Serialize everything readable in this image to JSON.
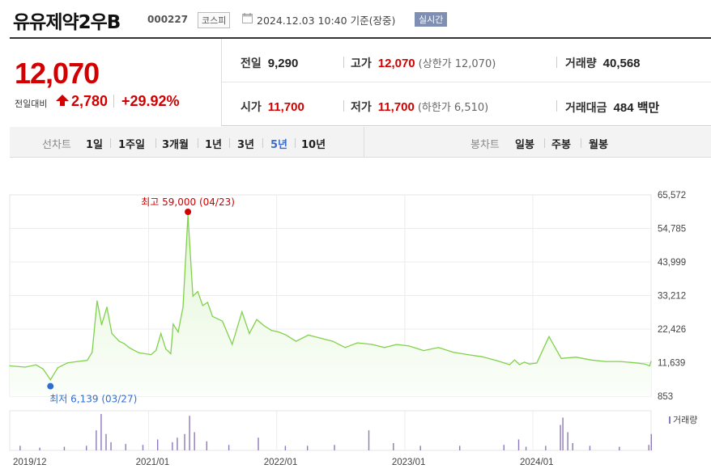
{
  "header": {
    "stock_name": "유유제약2우B",
    "stock_code": "000227",
    "market": "코스피",
    "datetime": "2024.12.03 10:40",
    "basis": "기준(장중)",
    "realtime_badge": "실시간"
  },
  "summary": {
    "price": "12,070",
    "change_label": "전일대비",
    "change": "2,780",
    "change_pct": "+29.92%",
    "prev_close_label": "전일",
    "prev_close": "9,290",
    "high_label": "고가",
    "high": "12,070",
    "high_limit": "(상한가 12,070)",
    "volume_label": "거래량",
    "volume": "40,568",
    "open_label": "시가",
    "open": "11,700",
    "low_label": "저가",
    "low": "11,700",
    "low_limit": "(하한가 6,510)",
    "value_label": "거래대금",
    "value": "484 백만"
  },
  "period_bar": {
    "line_chart_label": "선차트",
    "line_options": [
      "1일",
      "1주일",
      "3개월",
      "1년",
      "3년",
      "5년",
      "10년"
    ],
    "selected": "5년",
    "candle_chart_label": "봉차트",
    "candle_options": [
      "일봉",
      "주봉",
      "월봉"
    ]
  },
  "colors": {
    "up": "#d20000",
    "line": "#7fd24a",
    "fill": "#e3f6d6",
    "volume": "#8d7ab8",
    "low_marker": "#2e6ed1",
    "selected": "#3c6cc7"
  },
  "chart_data": {
    "type": "area",
    "x_tick_labels": [
      "2019/12",
      "2021/01",
      "2022/01",
      "2023/01",
      "2024/01"
    ],
    "y_tick_labels": [
      "65,572",
      "54,785",
      "43,999",
      "33,212",
      "22,426",
      "11,639",
      "853"
    ],
    "ylim": [
      853,
      65572
    ],
    "grid": true,
    "max_annotation": "최고 59,000 (04/23)",
    "min_annotation": "최저 6,139 (03/27)",
    "volume_legend": "거래량",
    "series": [
      {
        "x": [
          "2019-12-02",
          "2020-01-15",
          "2020-02-15",
          "2020-03-06",
          "2020-03-27",
          "2020-04-17",
          "2020-05-15",
          "2020-06-12",
          "2020-07-10",
          "2020-07-24",
          "2020-08-07",
          "2020-08-20",
          "2020-09-04",
          "2020-09-18",
          "2020-10-09",
          "2020-10-23",
          "2020-11-06",
          "2020-12-04",
          "2021-01-08",
          "2021-01-22",
          "2021-02-05",
          "2021-02-19",
          "2021-03-05",
          "2021-03-12",
          "2021-03-26",
          "2021-04-09",
          "2021-04-23",
          "2021-05-07",
          "2021-05-21",
          "2021-06-04",
          "2021-06-18",
          "2021-07-02",
          "2021-07-30",
          "2021-08-27",
          "2021-09-24",
          "2021-10-15",
          "2021-11-05",
          "2021-11-26",
          "2021-12-17",
          "2022-01-07",
          "2022-01-28",
          "2022-02-25",
          "2022-04-01",
          "2022-05-06",
          "2022-06-10",
          "2022-07-15",
          "2022-08-19",
          "2022-09-30",
          "2022-11-04",
          "2022-12-09",
          "2023-01-13",
          "2023-02-24",
          "2023-04-07",
          "2023-05-19",
          "2023-06-30",
          "2023-08-11",
          "2023-09-22",
          "2023-10-27",
          "2023-11-10",
          "2023-11-24",
          "2023-12-08",
          "2023-12-22",
          "2024-01-12",
          "2024-02-16",
          "2024-03-22",
          "2024-05-03",
          "2024-06-14",
          "2024-07-26",
          "2024-09-06",
          "2024-10-18",
          "2024-11-15",
          "2024-11-29",
          "2024-12-03"
        ],
        "y": [
          10600,
          10200,
          10900,
          9600,
          6139,
          10000,
          11600,
          12000,
          12400,
          15000,
          31500,
          23800,
          29500,
          21000,
          18500,
          17800,
          16500,
          14800,
          14200,
          15600,
          21000,
          16000,
          14500,
          24000,
          21500,
          29500,
          59000,
          33000,
          34500,
          30000,
          31000,
          26500,
          25000,
          17500,
          28000,
          21000,
          25500,
          23500,
          22000,
          21500,
          20500,
          18500,
          20500,
          19500,
          18500,
          16500,
          18000,
          17500,
          16500,
          17500,
          17000,
          15500,
          16500,
          15000,
          14200,
          13500,
          12200,
          11000,
          12500,
          11000,
          11800,
          11200,
          11500,
          20000,
          13000,
          13400,
          12500,
          12000,
          12000,
          11600,
          11200,
          10600,
          12070
        ]
      }
    ],
    "volume": {
      "x": [
        "2019-12-30",
        "2020-02-24",
        "2020-05-04",
        "2020-07-06",
        "2020-08-03",
        "2020-08-17",
        "2020-08-31",
        "2020-09-14",
        "2020-10-26",
        "2020-12-14",
        "2021-01-25",
        "2021-03-08",
        "2021-03-22",
        "2021-04-12",
        "2021-04-26",
        "2021-05-10",
        "2021-06-14",
        "2021-08-16",
        "2021-11-08",
        "2022-01-24",
        "2022-03-28",
        "2022-06-13",
        "2022-09-19",
        "2022-11-28",
        "2023-02-13",
        "2023-06-05",
        "2023-10-09",
        "2023-11-20",
        "2023-12-11",
        "2024-02-05",
        "2024-03-18",
        "2024-03-25",
        "2024-04-08",
        "2024-04-22",
        "2024-06-10",
        "2024-09-02",
        "2024-11-25",
        "2024-12-02"
      ],
      "y": [
        5,
        3,
        4,
        5,
        22,
        40,
        18,
        9,
        7,
        6,
        12,
        9,
        14,
        18,
        38,
        20,
        10,
        6,
        14,
        5,
        5,
        6,
        22,
        8,
        5,
        5,
        6,
        12,
        4,
        5,
        28,
        36,
        20,
        8,
        5,
        4,
        6,
        18
      ]
    }
  }
}
